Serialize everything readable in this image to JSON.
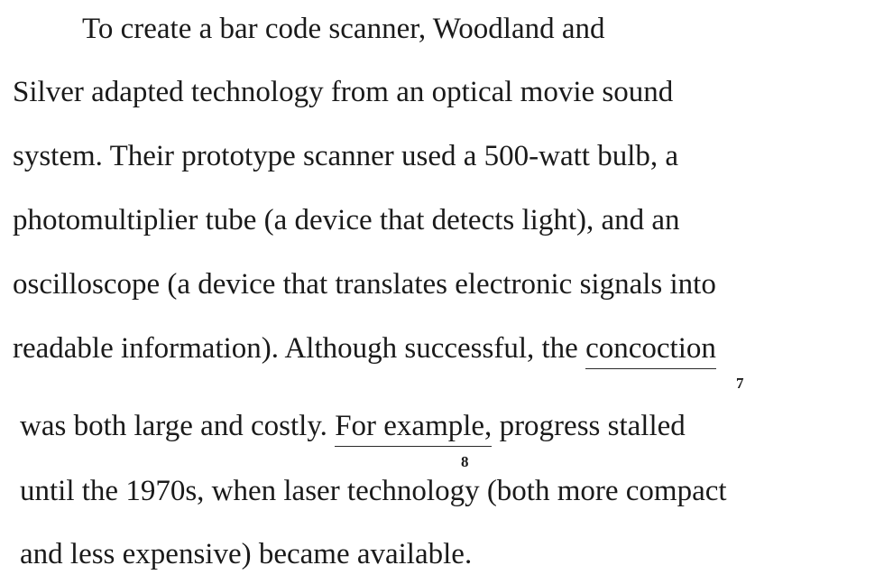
{
  "passage": {
    "line1": "To create a bar code scanner, Woodland and",
    "line2": "Silver adapted technology from an optical movie sound",
    "line3": "system. Their prototype scanner used a 500-watt bulb, a",
    "line4": "photomultiplier tube (a device that detects light), and an",
    "line5": "oscilloscope (a device that translates electronic signals into",
    "line6_before": "readable information). Although successful, the ",
    "underline_7": "concoction",
    "question_7": "7",
    "line7_before": "was both large and costly. ",
    "underline_8": "For example,",
    "line7_after": " progress stalled",
    "question_8": "8",
    "line8": "until the 1970s, when laser technology (both more compact",
    "line9": "and less expensive) became available."
  }
}
